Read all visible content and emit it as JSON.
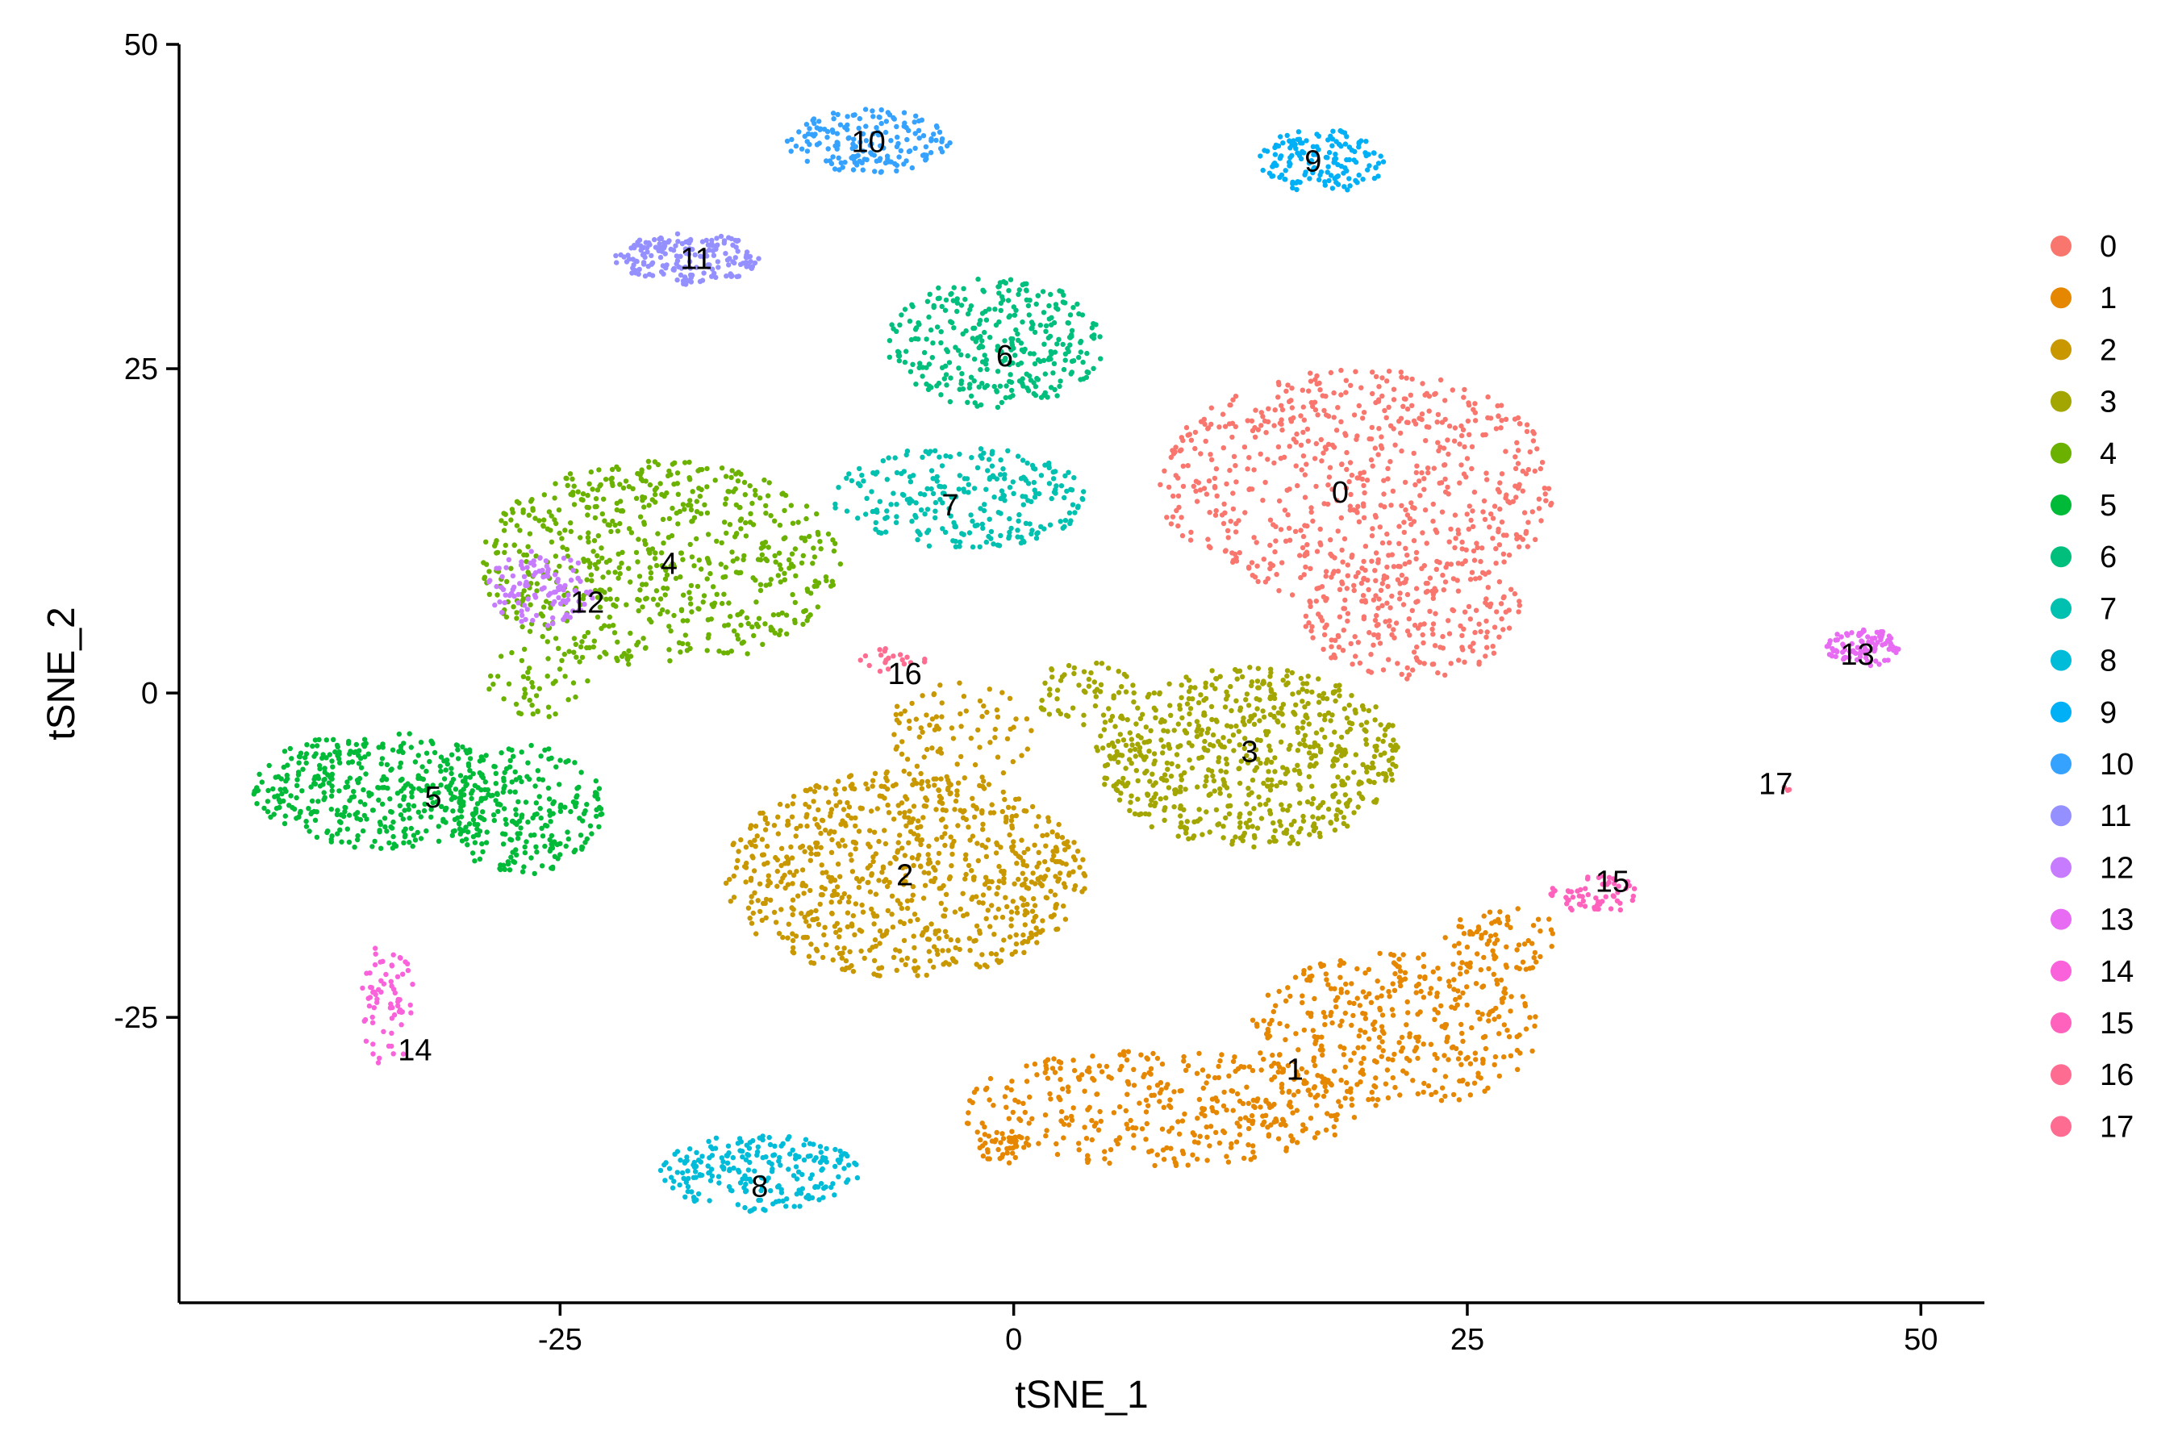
{
  "chart_data": {
    "type": "scatter",
    "title": "",
    "xlabel": "tSNE_1",
    "ylabel": "tSNE_2",
    "xlim": [
      -46,
      53.5
    ],
    "ylim": [
      -47,
      50
    ],
    "x_ticks": [
      -25,
      0,
      25,
      50
    ],
    "x_tick_labels": [
      "-25",
      "0",
      "25",
      "50"
    ],
    "y_ticks": [
      -25,
      0,
      25,
      50
    ],
    "y_tick_labels": [
      "-25",
      "0",
      "25",
      "50"
    ],
    "grid": false,
    "legend_position": "right",
    "legend_title": "",
    "series": [
      {
        "name": "0",
        "color": "#F8766D",
        "label_pos": [
          18,
          15.5
        ],
        "label": "0",
        "regions": [
          {
            "cx": 19,
            "cy": 16,
            "rx": 11,
            "ry": 9,
            "n": 650
          },
          {
            "cx": 22,
            "cy": 6,
            "rx": 6,
            "ry": 5,
            "n": 220
          }
        ]
      },
      {
        "name": "1",
        "color": "#E58700",
        "label_pos": [
          15.5,
          -29
        ],
        "label": "1",
        "regions": [
          {
            "cx": 8,
            "cy": -32,
            "rx": 11,
            "ry": 4.5,
            "n": 380
          },
          {
            "cx": 21,
            "cy": -26,
            "rx": 8,
            "ry": 6,
            "n": 380
          },
          {
            "cx": -0.5,
            "cy": -35,
            "rx": 1.5,
            "ry": 1.3,
            "n": 40
          },
          {
            "cx": 27,
            "cy": -19,
            "rx": 3.5,
            "ry": 2.5,
            "n": 70
          }
        ]
      },
      {
        "name": "2",
        "color": "#C99800",
        "label_pos": [
          -6.0,
          -14
        ],
        "label": "2",
        "regions": [
          {
            "cx": -6,
            "cy": -14,
            "rx": 10,
            "ry": 8,
            "n": 820
          },
          {
            "cx": -3,
            "cy": -3,
            "rx": 4,
            "ry": 4,
            "n": 80
          }
        ]
      },
      {
        "name": "3",
        "color": "#A3A500",
        "label_pos": [
          13,
          -4.5
        ],
        "label": "3",
        "regions": [
          {
            "cx": 13,
            "cy": -5,
            "rx": 8.5,
            "ry": 7,
            "n": 680
          },
          {
            "cx": 4,
            "cy": 0,
            "rx": 3,
            "ry": 2.5,
            "n": 60
          }
        ]
      },
      {
        "name": "4",
        "color": "#6BB100",
        "label_pos": [
          -19,
          10
        ],
        "label": "4",
        "regions": [
          {
            "cx": -19.5,
            "cy": 10,
            "rx": 10,
            "ry": 8,
            "n": 650
          },
          {
            "cx": -26,
            "cy": 1,
            "rx": 3,
            "ry": 3,
            "n": 50
          }
        ]
      },
      {
        "name": "5",
        "color": "#00BA38",
        "label_pos": [
          -32,
          -8
        ],
        "label": "5",
        "regions": [
          {
            "cx": -35,
            "cy": -7.5,
            "rx": 7,
            "ry": 4.5,
            "n": 400
          },
          {
            "cx": -27,
            "cy": -9,
            "rx": 4.5,
            "ry": 5,
            "n": 240
          }
        ]
      },
      {
        "name": "6",
        "color": "#00BF7D",
        "label_pos": [
          -0.5,
          26
        ],
        "label": "6",
        "regions": [
          {
            "cx": -1,
            "cy": 27,
            "rx": 6,
            "ry": 5,
            "n": 330
          }
        ]
      },
      {
        "name": "7",
        "color": "#00C0AF",
        "label_pos": [
          -3.5,
          14.5
        ],
        "label": "7",
        "regions": [
          {
            "cx": -3,
            "cy": 15,
            "rx": 7,
            "ry": 4,
            "n": 260
          }
        ]
      },
      {
        "name": "8",
        "color": "#00BCD8",
        "label_pos": [
          -14,
          -38
        ],
        "label": "8",
        "regions": [
          {
            "cx": -14,
            "cy": -37,
            "rx": 5.5,
            "ry": 3,
            "n": 230
          }
        ]
      },
      {
        "name": "9",
        "color": "#00B0F6",
        "label_pos": [
          16.5,
          41
        ],
        "label": "9",
        "regions": [
          {
            "cx": 17,
            "cy": 41,
            "rx": 3.5,
            "ry": 2.5,
            "n": 150
          }
        ]
      },
      {
        "name": "10",
        "color": "#35A2FF",
        "label_pos": [
          -8,
          42.5
        ],
        "label": "10",
        "regions": [
          {
            "cx": -8,
            "cy": 42.5,
            "rx": 4.5,
            "ry": 2.5,
            "n": 170
          }
        ]
      },
      {
        "name": "11",
        "color": "#9590FF",
        "label_pos": [
          -17.5,
          33.5
        ],
        "label": "11",
        "regions": [
          {
            "cx": -18,
            "cy": 33.5,
            "rx": 4,
            "ry": 2,
            "n": 180
          }
        ]
      },
      {
        "name": "12",
        "color": "#C77CFF",
        "label_pos": [
          -23.5,
          7
        ],
        "label": "12",
        "regions": [
          {
            "cx": -26,
            "cy": 8,
            "rx": 3,
            "ry": 3,
            "n": 110
          }
        ]
      },
      {
        "name": "13",
        "color": "#E76BF3",
        "label_pos": [
          46.5,
          3
        ],
        "label": "13",
        "regions": [
          {
            "cx": 46.8,
            "cy": 3.5,
            "rx": 2,
            "ry": 1.5,
            "n": 90
          }
        ]
      },
      {
        "name": "14",
        "color": "#FA62DB",
        "label_pos": [
          -33,
          -27.5
        ],
        "label": "14",
        "regions": [
          {
            "cx": -34.5,
            "cy": -24,
            "rx": 1.5,
            "ry": 5,
            "n": 70
          }
        ]
      },
      {
        "name": "15",
        "color": "#FF62BC",
        "label_pos": [
          33,
          -14.5
        ],
        "label": "15",
        "regions": [
          {
            "cx": 32,
            "cy": -15.5,
            "rx": 2.5,
            "ry": 1.5,
            "n": 60
          }
        ]
      },
      {
        "name": "16",
        "color": "#FF6C91",
        "label_pos": [
          -6,
          1.5
        ],
        "label": "16",
        "regions": [
          {
            "cx": -6.5,
            "cy": 2.5,
            "rx": 2,
            "ry": 1,
            "n": 20
          }
        ]
      },
      {
        "name": "17",
        "color": "#FF6C91",
        "label_pos": [
          42,
          -7
        ],
        "label": "17",
        "regions": [
          {
            "cx": 42.5,
            "cy": -7.5,
            "rx": 0.3,
            "ry": 0.3,
            "n": 3
          }
        ]
      }
    ]
  }
}
